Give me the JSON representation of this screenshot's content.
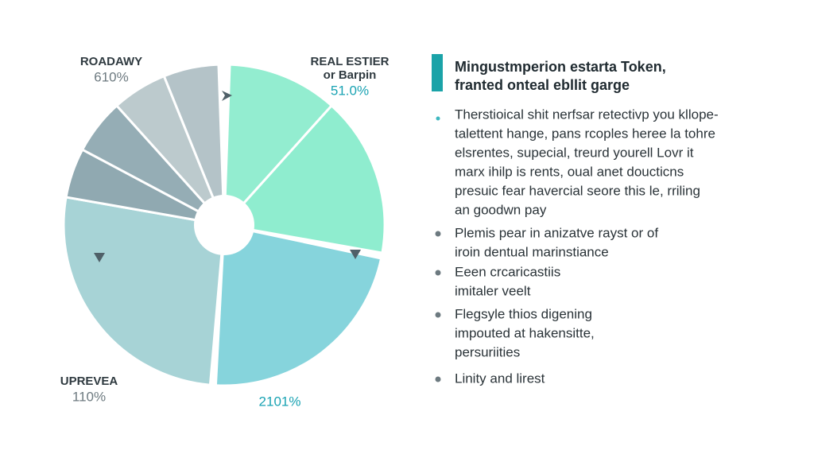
{
  "pie_labels": [
    {
      "lines": [
        "ROADAWY"
      ],
      "value": "610%"
    },
    {
      "lines": [
        "REAL ESTIER",
        "or Barpin"
      ],
      "value": "51.0%"
    },
    {
      "lines": [
        "UPREVEA"
      ],
      "value": "110%"
    },
    {
      "lines": [],
      "value": "2101%"
    }
  ],
  "panel": {
    "heading": [
      "Mingustmperion estarta Token,",
      "franted onteal ebllit garge"
    ],
    "bullets": [
      [
        "Therstioical shit nerfsar retectivp you kllope-",
        "talettent hange, pans rcoples heree la tohre",
        "elsrentes, supecial, treurd yourell Lovr it",
        "marx ihilp is rents, oual anet doucticns",
        "presuic fear havercial seore this le, rriling",
        "an goodwn pay"
      ],
      [
        "Plemis pear in anizatve rayst or of",
        "iroin dentual marinstiance"
      ],
      [
        "Eeen crcaricastiis",
        "imitaler veelt"
      ],
      [
        "Flegsyle thios digening",
        "impouted at hakensitte,",
        "persuriities"
      ],
      [
        "Linity and lirest"
      ]
    ]
  }
}
